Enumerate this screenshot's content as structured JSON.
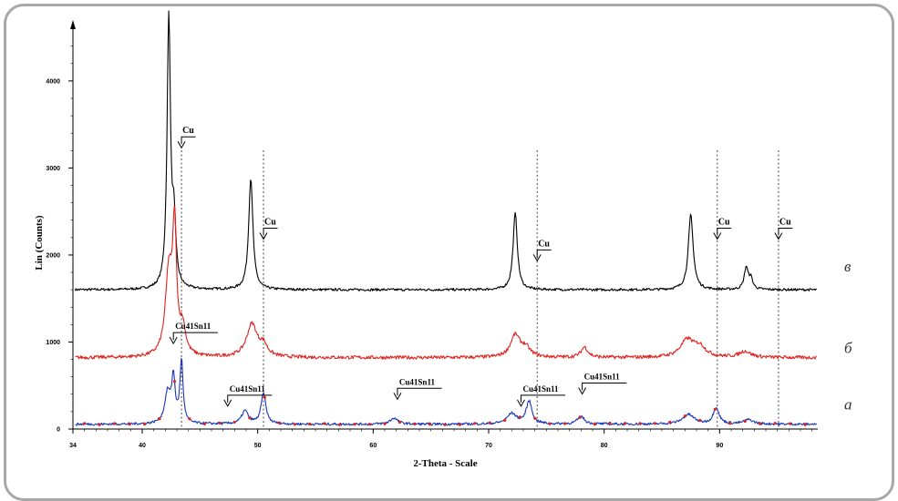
{
  "chart_data": {
    "type": "line",
    "xlabel": "2-Theta - Scale",
    "ylabel": "Lin (Counts)",
    "xlim": [
      34,
      98.5
    ],
    "ylim": [
      0,
      4700
    ],
    "x_ticks": [
      34,
      40,
      50,
      60,
      70,
      80,
      90
    ],
    "y_ticks": [
      0,
      1000,
      2000,
      3000,
      4000
    ],
    "grid": false,
    "series": [
      {
        "name": "в",
        "color": "#000000",
        "baseline": 1600,
        "noise": 14,
        "peaks": [
          {
            "x": 42.3,
            "h": 3100,
            "w": 0.18
          },
          {
            "x": 42.75,
            "h": 700,
            "w": 0.18
          },
          {
            "x": 49.4,
            "h": 1280,
            "w": 0.22
          },
          {
            "x": 72.3,
            "h": 880,
            "w": 0.22
          },
          {
            "x": 87.5,
            "h": 860,
            "w": 0.25
          },
          {
            "x": 92.3,
            "h": 250,
            "w": 0.2
          },
          {
            "x": 92.7,
            "h": 120,
            "w": 0.2
          }
        ]
      },
      {
        "name": "б",
        "color": "#e0221e",
        "baseline": 820,
        "noise": 20,
        "peaks": [
          {
            "x": 42.3,
            "h": 950,
            "w": 0.35
          },
          {
            "x": 42.8,
            "h": 1400,
            "w": 0.2
          },
          {
            "x": 43.5,
            "h": 300,
            "w": 0.3
          },
          {
            "x": 49.5,
            "h": 380,
            "w": 0.55
          },
          {
            "x": 50.5,
            "h": 120,
            "w": 0.4
          },
          {
            "x": 72.3,
            "h": 250,
            "w": 0.5
          },
          {
            "x": 73.2,
            "h": 100,
            "w": 0.5
          },
          {
            "x": 78.3,
            "h": 120,
            "w": 0.35
          },
          {
            "x": 87.2,
            "h": 200,
            "w": 0.7
          },
          {
            "x": 88.3,
            "h": 110,
            "w": 0.6
          },
          {
            "x": 92.2,
            "h": 70,
            "w": 0.6
          }
        ]
      },
      {
        "name": "а",
        "color": "#1a35b5",
        "baseline": 55,
        "noise": 14,
        "peaks": [
          {
            "x": 42.2,
            "h": 350,
            "w": 0.3
          },
          {
            "x": 42.7,
            "h": 500,
            "w": 0.18
          },
          {
            "x": 43.4,
            "h": 720,
            "w": 0.16
          },
          {
            "x": 48.9,
            "h": 150,
            "w": 0.35
          },
          {
            "x": 50.5,
            "h": 350,
            "w": 0.25
          },
          {
            "x": 61.8,
            "h": 70,
            "w": 0.4
          },
          {
            "x": 72.0,
            "h": 120,
            "w": 0.5
          },
          {
            "x": 73.5,
            "h": 260,
            "w": 0.3
          },
          {
            "x": 78.0,
            "h": 90,
            "w": 0.35
          },
          {
            "x": 87.3,
            "h": 110,
            "w": 0.6
          },
          {
            "x": 89.7,
            "h": 190,
            "w": 0.3
          },
          {
            "x": 92.5,
            "h": 50,
            "w": 0.5
          }
        ],
        "markers_color": "#e0221e"
      }
    ],
    "reference_lines_x": [
      43.4,
      50.5,
      74.2,
      89.8,
      95.1
    ],
    "annotations": [
      {
        "text": "Cu",
        "x": 43.4,
        "y": 3400
      },
      {
        "text": "Cu",
        "x": 50.5,
        "y": 2350
      },
      {
        "text": "Cu",
        "x": 74.2,
        "y": 2100
      },
      {
        "text": "Cu",
        "x": 89.8,
        "y": 2350
      },
      {
        "text": "Cu",
        "x": 95.1,
        "y": 2350
      },
      {
        "text": "Cu41Sn11",
        "x": 42.7,
        "y": 1150
      },
      {
        "text": "Cu41Sn11",
        "x": 47.4,
        "y": 430
      },
      {
        "text": "Cu41Sn11",
        "x": 62.1,
        "y": 510
      },
      {
        "text": "Cu41Sn11",
        "x": 72.8,
        "y": 430
      },
      {
        "text": "Cu41Sn11",
        "x": 78.1,
        "y": 570
      }
    ],
    "curve_labels": [
      "в",
      "б",
      "а"
    ]
  }
}
